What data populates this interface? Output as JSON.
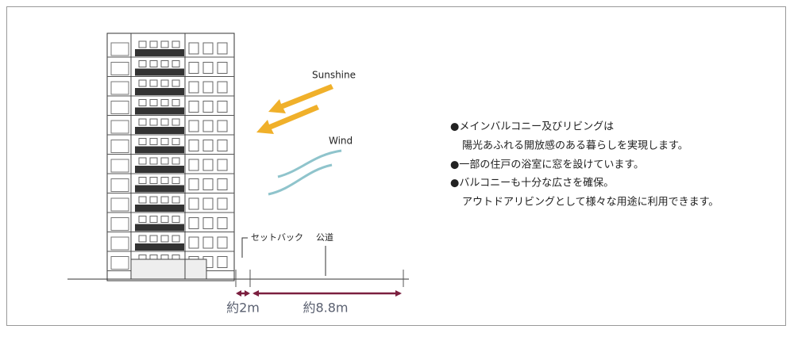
{
  "labels": {
    "sunshine": "Sunshine",
    "wind": "Wind",
    "setback": "セットバック",
    "road": "公道",
    "setback_width": "約2m",
    "road_width": "約8.8m"
  },
  "notes": [
    {
      "text": "●メインバルコニー及びリビングは",
      "continuation": "陽光あふれる開放感のある暮らしを実現します。"
    },
    {
      "text": "●一部の住戸の浴室に窓を設けています。"
    },
    {
      "text": "●バルコニーも十分な広さを確保。",
      "continuation": "アウトドアリビングとして様々な用途に利用できます。"
    }
  ]
}
